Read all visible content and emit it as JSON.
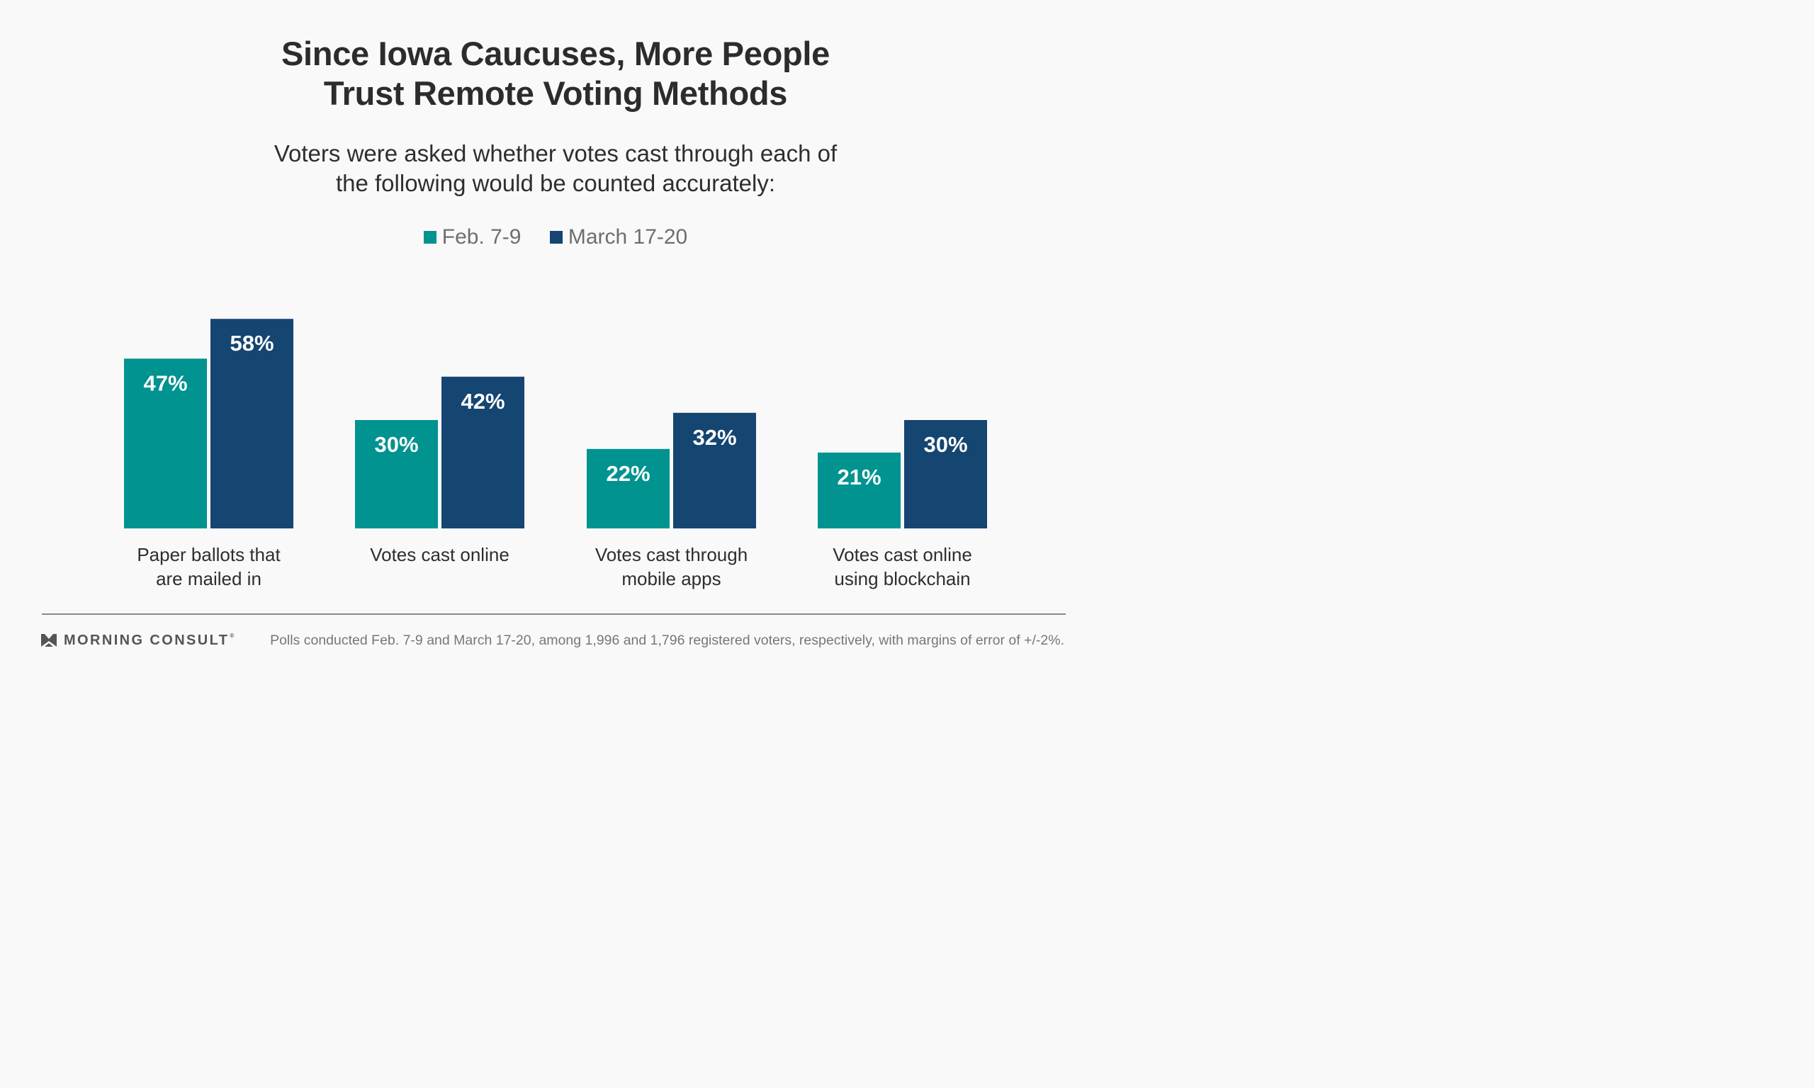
{
  "chart_data": {
    "type": "bar",
    "title": [
      "Since Iowa Caucuses, More People",
      "Trust Remote Voting Methods"
    ],
    "subtitle": [
      "Voters were asked whether votes cast through each of",
      "the following would be counted accurately:"
    ],
    "categories": [
      [
        "Paper ballots that",
        "are mailed in"
      ],
      [
        "Votes cast online"
      ],
      [
        "Votes cast through",
        "mobile apps"
      ],
      [
        "Votes cast online",
        "using blockchain"
      ]
    ],
    "series": [
      {
        "name": "Feb. 7-9",
        "color": "#00938f",
        "values": [
          47,
          30,
          22,
          21
        ],
        "labels": [
          "47%",
          "30%",
          "22%",
          "21%"
        ]
      },
      {
        "name": "March 17-20",
        "color": "#154571",
        "values": [
          58,
          42,
          32,
          30
        ],
        "labels": [
          "58%",
          "42%",
          "32%",
          "30%"
        ]
      }
    ],
    "ylim": [
      0,
      100
    ],
    "grid": false,
    "legend_position": "top-center"
  },
  "footer": {
    "brand": "MORNING CONSULT",
    "brand_mark": "reg",
    "logo_icon": "morning-consult-m-icon",
    "note": "Polls conducted Feb. 7-9 and March 17-20, among 1,996 and 1,796 registered voters, respectively, with margins of error of +/-2%."
  }
}
